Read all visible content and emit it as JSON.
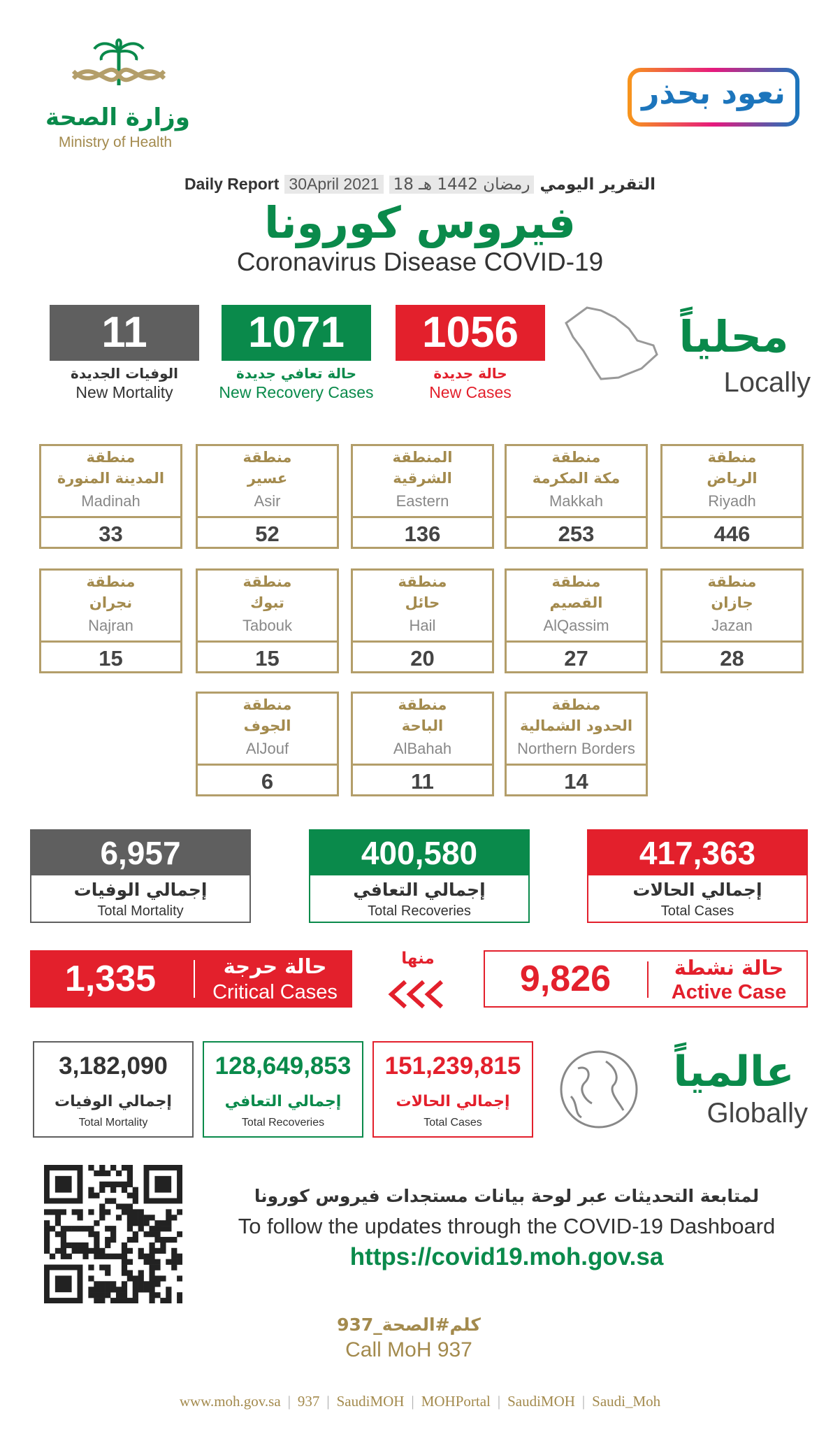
{
  "header": {
    "ministry_ar": "وزارة الصحة",
    "ministry_en": "Ministry of Health",
    "campaign": "نعود بحذر"
  },
  "report": {
    "label_ar": "التقرير اليومي",
    "hijri": "18 رمضان 1442 هـ",
    "date": "30April 2021",
    "label_en": "Daily Report"
  },
  "title": {
    "ar": "فيروس كورونا",
    "en": "Coronavirus Disease COVID-19"
  },
  "locally": {
    "heading_ar": "محلياً",
    "heading_en": "Locally",
    "stats": [
      {
        "value": "1056",
        "ar": "حالة جديدة",
        "en": "New Cases"
      },
      {
        "value": "1071",
        "ar": "حالة تعافي جديدة",
        "en": "New Recovery Cases"
      },
      {
        "value": "11",
        "ar": "الوفيات الجديدة",
        "en": "New Mortality"
      }
    ]
  },
  "regions": [
    {
      "prefix": "منطقة",
      "ar": "الرياض",
      "en": "Riyadh",
      "value": "446"
    },
    {
      "prefix": "منطقة",
      "ar": "مكة المكرمة",
      "en": "Makkah",
      "value": "253"
    },
    {
      "prefix": "المنطقة",
      "ar": "الشرقية",
      "en": "Eastern",
      "value": "136"
    },
    {
      "prefix": "منطقة",
      "ar": "عسير",
      "en": "Asir",
      "value": "52"
    },
    {
      "prefix": "منطقة",
      "ar": "المدينة المنورة",
      "en": "Madinah",
      "value": "33"
    },
    {
      "prefix": "منطقة",
      "ar": "جازان",
      "en": "Jazan",
      "value": "28"
    },
    {
      "prefix": "منطقة",
      "ar": "القصيم",
      "en": "AlQassim",
      "value": "27"
    },
    {
      "prefix": "منطقة",
      "ar": "حائل",
      "en": "Hail",
      "value": "20"
    },
    {
      "prefix": "منطقة",
      "ar": "تبوك",
      "en": "Tabouk",
      "value": "15"
    },
    {
      "prefix": "منطقة",
      "ar": "نجران",
      "en": "Najran",
      "value": "15"
    },
    {
      "prefix": "منطقة",
      "ar": "الحدود الشمالية",
      "en": "Northern Borders",
      "value": "14"
    },
    {
      "prefix": "منطقة",
      "ar": "الباحة",
      "en": "AlBahah",
      "value": "11"
    },
    {
      "prefix": "منطقة",
      "ar": "الجوف",
      "en": "AlJouf",
      "value": "6"
    }
  ],
  "totals": [
    {
      "value": "417,363",
      "ar": "إجمالي الحالات",
      "en": "Total Cases"
    },
    {
      "value": "400,580",
      "ar": "إجمالي التعافي",
      "en": "Total Recoveries"
    },
    {
      "value": "6,957",
      "ar": "إجمالي الوفيات",
      "en": "Total Mortality"
    }
  ],
  "active": {
    "value": "9,826",
    "ar": "حالة نشطة",
    "en": "Active Case"
  },
  "of_which": "منها",
  "critical": {
    "value": "1,335",
    "ar": "حالة حرجة",
    "en": "Critical Cases"
  },
  "globally": {
    "heading_ar": "عالمياً",
    "heading_en": "Globally",
    "stats": [
      {
        "value": "151,239,815",
        "ar": "إجمالي الحالات",
        "en": "Total Cases"
      },
      {
        "value": "128,649,853",
        "ar": "إجمالي التعافي",
        "en": "Total Recoveries"
      },
      {
        "value": "3,182,090",
        "ar": "إجمالي الوفيات",
        "en": "Total Mortality"
      }
    ]
  },
  "dashboard": {
    "ar": "لمتابعة التحديثات عبر لوحة بيانات مستجدات فيروس كورونا",
    "en": "To follow the updates through the COVID-19 Dashboard",
    "url": "https://covid19.moh.gov.sa"
  },
  "call": {
    "ar": "كلم#الصحة_937",
    "en": "Call MoH 937"
  },
  "footer": [
    "www.moh.gov.sa",
    "937",
    "SaudiMOH",
    "MOHPortal",
    "SaudiMOH",
    "Saudi_Moh"
  ]
}
